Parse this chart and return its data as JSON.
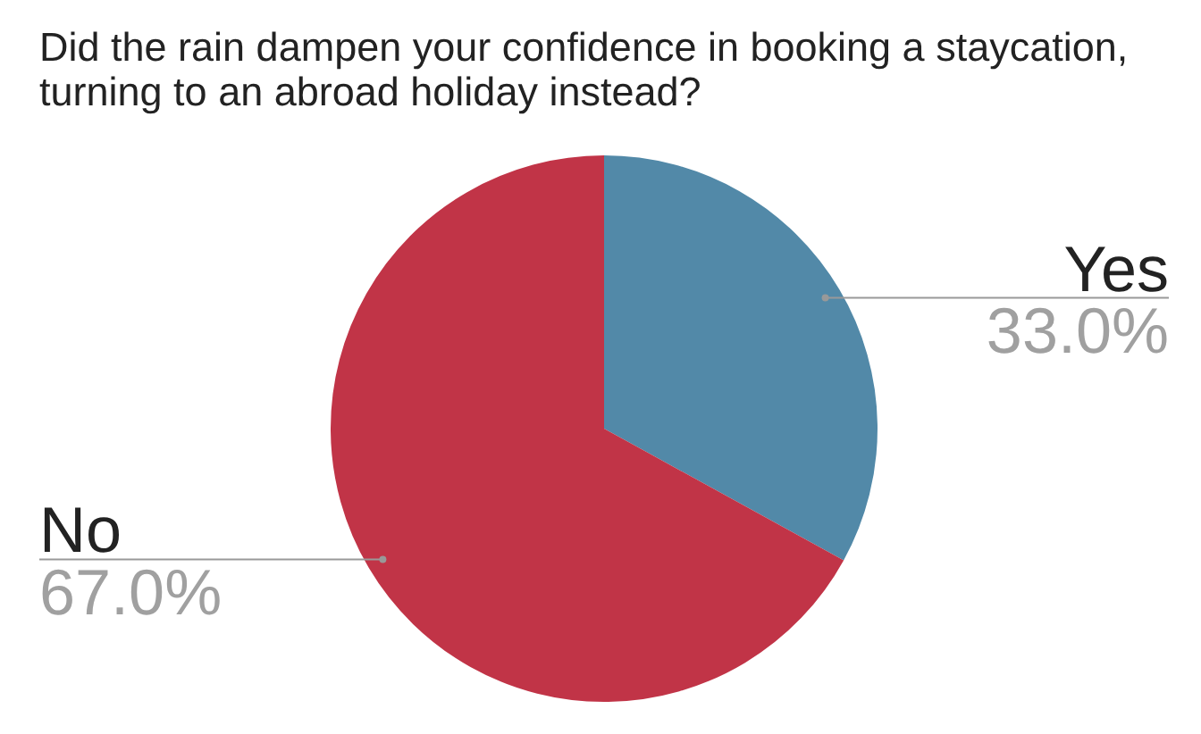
{
  "chart_data": {
    "type": "pie",
    "title": "Did the rain dampen your confidence in booking a staycation, turning to an abroad holiday instead?",
    "categories": [
      "Yes",
      "No"
    ],
    "values": [
      33,
      67
    ],
    "colors": [
      "#5289a8",
      "#c13447"
    ],
    "value_labels": [
      "33.0%",
      "67.0%"
    ],
    "legend": false
  }
}
